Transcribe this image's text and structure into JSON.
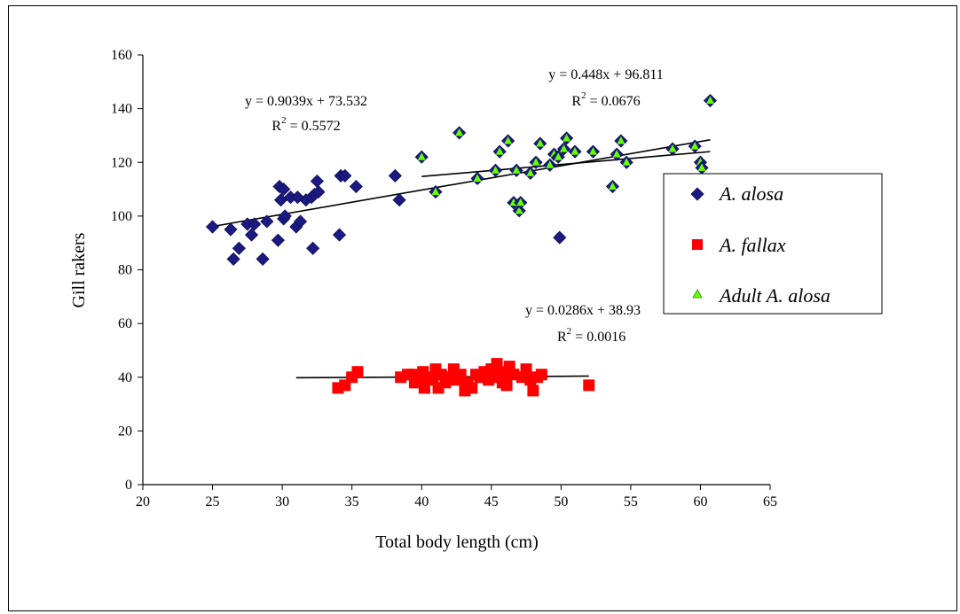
{
  "chart_data": {
    "type": "scatter",
    "xlabel": "Total body length (cm)",
    "ylabel": "Gill rakers",
    "xlim": [
      20,
      65
    ],
    "ylim": [
      0,
      160
    ],
    "xticks": [
      20,
      25,
      30,
      35,
      40,
      45,
      50,
      55,
      60,
      65
    ],
    "yticks": [
      0,
      20,
      40,
      60,
      80,
      100,
      120,
      140,
      160
    ],
    "grid": false,
    "legend_position": "right",
    "series": [
      {
        "name": "A. alosa",
        "marker": "diamond",
        "color": "#1a1a80",
        "points": [
          [
            25,
            96
          ],
          [
            26.3,
            95
          ],
          [
            26.5,
            84
          ],
          [
            26.9,
            88
          ],
          [
            27.5,
            97
          ],
          [
            27.8,
            93
          ],
          [
            28,
            97
          ],
          [
            28.6,
            84
          ],
          [
            28.9,
            98
          ],
          [
            29.7,
            91
          ],
          [
            29.8,
            111
          ],
          [
            29.9,
            106
          ],
          [
            30.1,
            110
          ],
          [
            30.1,
            99
          ],
          [
            30.2,
            100
          ],
          [
            30.6,
            107
          ],
          [
            31,
            96
          ],
          [
            31.1,
            107
          ],
          [
            31.3,
            98
          ],
          [
            31.7,
            106
          ],
          [
            32.1,
            107
          ],
          [
            32.2,
            88
          ],
          [
            32.3,
            108
          ],
          [
            32.5,
            113
          ],
          [
            32.6,
            109
          ],
          [
            34.1,
            93
          ],
          [
            34.2,
            115
          ],
          [
            34.5,
            115
          ],
          [
            35.3,
            111
          ],
          [
            38.1,
            115
          ],
          [
            38.4,
            106
          ],
          [
            49.9,
            92
          ]
        ]
      },
      {
        "name": "A. fallax",
        "marker": "square",
        "color": "#ff0000",
        "points": [
          [
            34,
            36
          ],
          [
            34.5,
            37
          ],
          [
            35,
            40
          ],
          [
            35.4,
            42
          ],
          [
            38.5,
            40
          ],
          [
            39,
            41
          ],
          [
            39.3,
            41
          ],
          [
            39.5,
            38
          ],
          [
            39.8,
            40
          ],
          [
            40.1,
            42
          ],
          [
            40.2,
            36
          ],
          [
            40.5,
            39
          ],
          [
            40.8,
            40
          ],
          [
            41,
            43
          ],
          [
            41.2,
            36
          ],
          [
            41.4,
            41
          ],
          [
            41.7,
            38
          ],
          [
            42,
            40
          ],
          [
            42.3,
            43
          ],
          [
            42.5,
            39
          ],
          [
            42.8,
            41
          ],
          [
            43.1,
            35
          ],
          [
            43.3,
            38
          ],
          [
            43.6,
            36
          ],
          [
            43.9,
            41
          ],
          [
            44.2,
            40
          ],
          [
            44.5,
            42
          ],
          [
            44.8,
            39
          ],
          [
            45,
            43
          ],
          [
            45.2,
            41
          ],
          [
            45.4,
            45
          ],
          [
            45.6,
            40
          ],
          [
            45.8,
            38
          ],
          [
            46,
            42
          ],
          [
            46.1,
            37
          ],
          [
            46.3,
            44
          ],
          [
            46.6,
            41
          ],
          [
            47.2,
            40
          ],
          [
            47.5,
            43
          ],
          [
            47.8,
            39
          ],
          [
            48,
            35
          ],
          [
            48.3,
            40
          ],
          [
            48.6,
            41
          ],
          [
            52,
            37
          ]
        ]
      },
      {
        "name": "Adult A. alosa",
        "marker": "triangle",
        "color": "#66ff00",
        "points": [
          [
            40,
            122
          ],
          [
            41,
            109
          ],
          [
            42.7,
            131
          ],
          [
            44,
            114
          ],
          [
            45.3,
            117
          ],
          [
            45.6,
            124
          ],
          [
            46.2,
            128
          ],
          [
            46.6,
            105
          ],
          [
            46.8,
            117
          ],
          [
            47,
            102
          ],
          [
            47.1,
            105
          ],
          [
            47.8,
            116
          ],
          [
            48.2,
            120
          ],
          [
            48.5,
            127
          ],
          [
            49.2,
            119
          ],
          [
            49.5,
            123
          ],
          [
            49.8,
            122
          ],
          [
            50.2,
            125
          ],
          [
            50.4,
            129
          ],
          [
            51,
            124
          ],
          [
            52.3,
            124
          ],
          [
            53.7,
            111
          ],
          [
            54,
            123
          ],
          [
            54.3,
            128
          ],
          [
            54.7,
            120
          ],
          [
            58,
            125
          ],
          [
            59.6,
            126
          ],
          [
            60,
            120
          ],
          [
            60.1,
            118
          ],
          [
            60.7,
            143
          ]
        ]
      }
    ],
    "trendlines": [
      {
        "x_range": [
          25,
          60.7
        ],
        "slope": 0.9039,
        "intercept": 73.532,
        "equation": "y = 0.9039x + 73.532",
        "r2_prefix": "R",
        "r2_exp": "2",
        "r2_value": " = 0.5572"
      },
      {
        "x_range": [
          40,
          60.7
        ],
        "slope": 0.448,
        "intercept": 96.811,
        "equation": "y = 0.448x + 96.811",
        "r2_prefix": "R",
        "r2_exp": "2",
        "r2_value": " = 0.0676"
      },
      {
        "x_range": [
          31,
          52
        ],
        "slope": 0.0286,
        "intercept": 38.93,
        "equation": "y = 0.0286x + 38.93",
        "r2_prefix": "R",
        "r2_exp": "2",
        "r2_value": " = 0.0016"
      }
    ]
  }
}
